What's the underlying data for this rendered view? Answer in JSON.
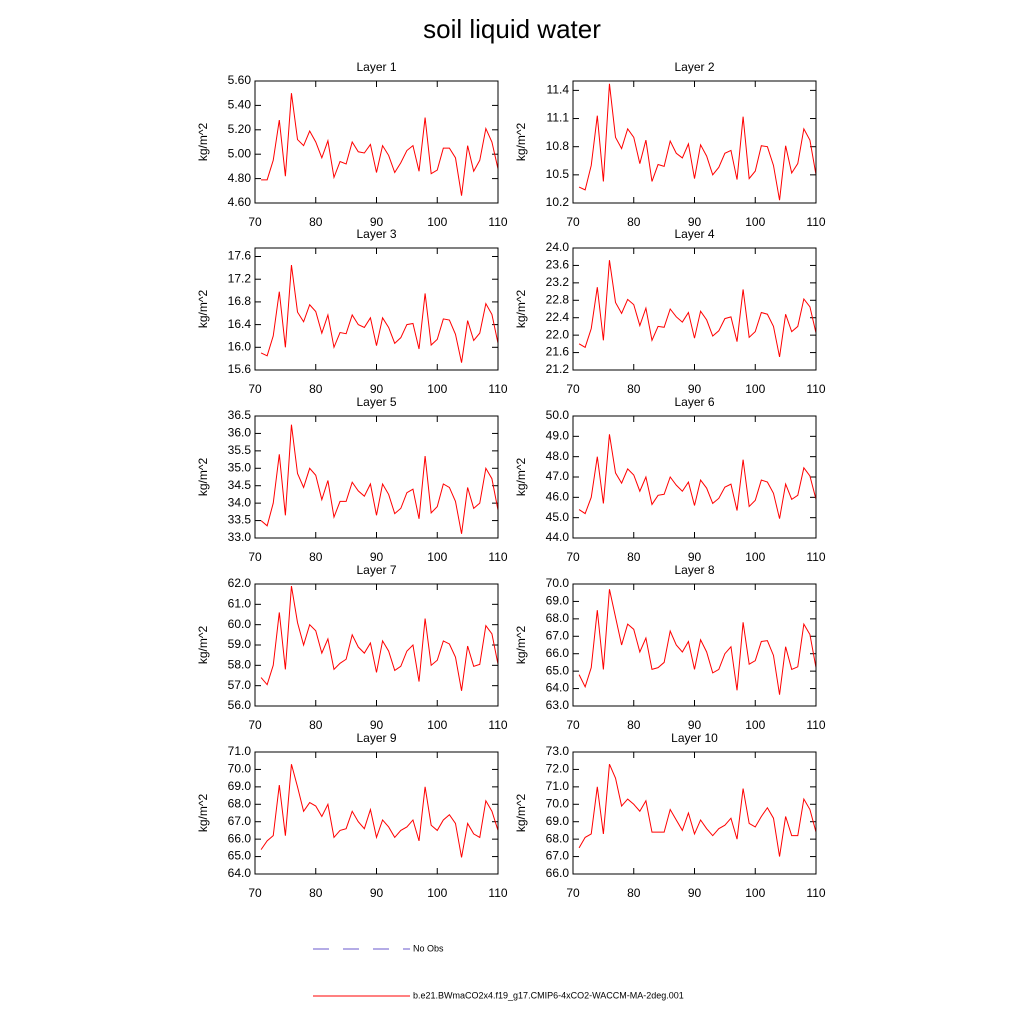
{
  "title": "soil liquid water",
  "legend": [
    {
      "name": "No Obs",
      "color": "#6a5acd",
      "dashed": true
    },
    {
      "name": "b.e21.BWmaCO2x4.f19_g17.CMIP6-4xCO2-WACCM-MA-2deg.001",
      "color": "#ff0000",
      "dashed": false
    }
  ],
  "chart_data": [
    {
      "type": "line",
      "title": "Layer 1",
      "y_label": "kg/m^2",
      "color": "#ff0000",
      "x": [
        71,
        72,
        73,
        74,
        75,
        76,
        77,
        78,
        79,
        80,
        81,
        82,
        83,
        84,
        85,
        86,
        87,
        88,
        89,
        90,
        91,
        92,
        93,
        94,
        95,
        96,
        97,
        98,
        99,
        100,
        101,
        102,
        103,
        104,
        105,
        106,
        107,
        108,
        109,
        110
      ],
      "values": [
        4.79,
        4.79,
        4.95,
        5.28,
        4.82,
        5.5,
        5.12,
        5.07,
        5.19,
        5.1,
        4.97,
        5.11,
        4.81,
        4.94,
        4.92,
        5.1,
        5.02,
        5.01,
        5.08,
        4.85,
        5.07,
        4.99,
        4.85,
        4.93,
        5.03,
        5.07,
        4.86,
        5.3,
        4.84,
        4.87,
        5.05,
        5.05,
        4.97,
        4.66,
        5.07,
        4.86,
        4.95,
        5.21,
        5.1,
        4.88
      ],
      "xlim": [
        70,
        110
      ],
      "xticks": [
        70,
        80,
        90,
        100,
        110
      ],
      "ylim": [
        4.6,
        5.6
      ],
      "yticks": [
        {
          "value": 4.6,
          "label": "4.60"
        },
        {
          "value": 4.8,
          "label": "4.80"
        },
        {
          "value": 5.0,
          "label": "5.00"
        },
        {
          "value": 5.2,
          "label": "5.20"
        },
        {
          "value": 5.4,
          "label": "5.40"
        },
        {
          "value": 5.6,
          "label": "5.60"
        }
      ]
    },
    {
      "type": "line",
      "title": "Layer 2",
      "y_label": "kg/m^2",
      "color": "#ff0000",
      "x": [
        71,
        72,
        73,
        74,
        75,
        76,
        77,
        78,
        79,
        80,
        81,
        82,
        83,
        84,
        85,
        86,
        87,
        88,
        89,
        90,
        91,
        92,
        93,
        94,
        95,
        96,
        97,
        98,
        99,
        100,
        101,
        102,
        103,
        104,
        105,
        106,
        107,
        108,
        109,
        110
      ],
      "values": [
        10.37,
        10.34,
        10.6,
        11.13,
        10.43,
        11.47,
        10.9,
        10.78,
        10.99,
        10.9,
        10.62,
        10.87,
        10.43,
        10.61,
        10.59,
        10.86,
        10.73,
        10.68,
        10.83,
        10.46,
        10.82,
        10.7,
        10.5,
        10.58,
        10.73,
        10.76,
        10.45,
        11.12,
        10.46,
        10.54,
        10.81,
        10.8,
        10.6,
        10.23,
        10.81,
        10.52,
        10.62,
        10.99,
        10.87,
        10.5
      ],
      "xlim": [
        70,
        110
      ],
      "xticks": [
        70,
        80,
        90,
        100,
        110
      ],
      "ylim": [
        10.2,
        11.5
      ],
      "yticks": [
        10.2,
        10.5,
        10.8,
        11.1,
        11.4
      ]
    },
    {
      "type": "line",
      "title": "Layer 3",
      "y_label": "kg/m^2",
      "color": "#ff0000",
      "x": [
        71,
        72,
        73,
        74,
        75,
        76,
        77,
        78,
        79,
        80,
        81,
        82,
        83,
        84,
        85,
        86,
        87,
        88,
        89,
        90,
        91,
        92,
        93,
        94,
        95,
        96,
        97,
        98,
        99,
        100,
        101,
        102,
        103,
        104,
        105,
        106,
        107,
        108,
        109,
        110
      ],
      "values": [
        15.9,
        15.85,
        16.2,
        16.98,
        16.0,
        17.45,
        16.62,
        16.45,
        16.75,
        16.63,
        16.25,
        16.57,
        16.0,
        16.26,
        16.24,
        16.57,
        16.4,
        16.35,
        16.52,
        16.03,
        16.52,
        16.35,
        16.07,
        16.17,
        16.4,
        16.42,
        15.97,
        16.95,
        16.04,
        16.14,
        16.5,
        16.48,
        16.23,
        15.73,
        16.47,
        16.12,
        16.25,
        16.77,
        16.58,
        16.07
      ],
      "xlim": [
        70,
        110
      ],
      "xticks": [
        70,
        80,
        90,
        100,
        110
      ],
      "ylim": [
        15.6,
        17.75
      ],
      "yticks": [
        15.6,
        {
          "value": 16,
          "label": "16.0"
        },
        16.4,
        16.8,
        17.2,
        17.6
      ]
    },
    {
      "type": "line",
      "title": "Layer 4",
      "y_label": "kg/m^2",
      "color": "#ff0000",
      "x": [
        71,
        72,
        73,
        74,
        75,
        76,
        77,
        78,
        79,
        80,
        81,
        82,
        83,
        84,
        85,
        86,
        87,
        88,
        89,
        90,
        91,
        92,
        93,
        94,
        95,
        96,
        97,
        98,
        99,
        100,
        101,
        102,
        103,
        104,
        105,
        106,
        107,
        108,
        109,
        110
      ],
      "values": [
        21.8,
        21.72,
        22.15,
        23.1,
        21.88,
        23.72,
        22.75,
        22.5,
        22.82,
        22.7,
        22.22,
        22.62,
        21.88,
        22.2,
        22.18,
        22.6,
        22.42,
        22.3,
        22.52,
        21.93,
        22.55,
        22.35,
        21.98,
        22.1,
        22.38,
        22.42,
        21.85,
        23.05,
        21.95,
        22.08,
        22.52,
        22.48,
        22.2,
        21.5,
        22.48,
        22.08,
        22.2,
        22.83,
        22.65,
        22.05
      ],
      "xlim": [
        70,
        110
      ],
      "xticks": [
        70,
        80,
        90,
        100,
        110
      ],
      "ylim": [
        21.2,
        24.0
      ],
      "yticks": [
        21.2,
        21.6,
        {
          "value": 22,
          "label": "22.0"
        },
        22.4,
        22.8,
        23.2,
        23.6,
        {
          "value": 24,
          "label": "24.0"
        }
      ]
    },
    {
      "type": "line",
      "title": "Layer 5",
      "y_label": "kg/m^2",
      "color": "#ff0000",
      "x": [
        71,
        72,
        73,
        74,
        75,
        76,
        77,
        78,
        79,
        80,
        81,
        82,
        83,
        84,
        85,
        86,
        87,
        88,
        89,
        90,
        91,
        92,
        93,
        94,
        95,
        96,
        97,
        98,
        99,
        100,
        101,
        102,
        103,
        104,
        105,
        106,
        107,
        108,
        109,
        110
      ],
      "values": [
        33.5,
        33.35,
        34.0,
        35.4,
        33.65,
        36.25,
        34.85,
        34.45,
        35.0,
        34.8,
        34.1,
        34.65,
        33.6,
        34.05,
        34.05,
        34.6,
        34.35,
        34.2,
        34.55,
        33.65,
        34.55,
        34.25,
        33.7,
        33.85,
        34.3,
        34.4,
        33.55,
        35.35,
        33.72,
        33.9,
        34.55,
        34.45,
        34.05,
        33.12,
        34.45,
        33.85,
        34.0,
        35.0,
        34.7,
        33.8
      ],
      "xlim": [
        70,
        110
      ],
      "xticks": [
        70,
        80,
        90,
        100,
        110
      ],
      "ylim": [
        33,
        36.5
      ],
      "yticks": [
        {
          "value": 33,
          "label": "33.0"
        },
        33.5,
        {
          "value": 34,
          "label": "34.0"
        },
        34.5,
        {
          "value": 35,
          "label": "35.0"
        },
        35.5,
        {
          "value": 36,
          "label": "36.0"
        },
        36.5
      ]
    },
    {
      "type": "line",
      "title": "Layer 6",
      "y_label": "kg/m^2",
      "color": "#ff0000",
      "x": [
        71,
        72,
        73,
        74,
        75,
        76,
        77,
        78,
        79,
        80,
        81,
        82,
        83,
        84,
        85,
        86,
        87,
        88,
        89,
        90,
        91,
        92,
        93,
        94,
        95,
        96,
        97,
        98,
        99,
        100,
        101,
        102,
        103,
        104,
        105,
        106,
        107,
        108,
        109,
        110
      ],
      "values": [
        45.4,
        45.2,
        46.0,
        48.0,
        45.7,
        49.1,
        47.2,
        46.7,
        47.4,
        47.1,
        46.3,
        47.0,
        45.65,
        46.1,
        46.15,
        47.0,
        46.6,
        46.3,
        46.75,
        45.6,
        46.85,
        46.45,
        45.7,
        45.95,
        46.5,
        46.65,
        45.35,
        47.85,
        45.55,
        45.85,
        46.85,
        46.75,
        46.2,
        44.95,
        46.65,
        45.9,
        46.1,
        47.45,
        47.05,
        45.9
      ],
      "xlim": [
        70,
        110
      ],
      "xticks": [
        70,
        80,
        90,
        100,
        110
      ],
      "ylim": [
        44,
        50
      ],
      "yticks": [
        {
          "value": 44,
          "label": "44.0"
        },
        {
          "value": 45,
          "label": "45.0"
        },
        {
          "value": 46,
          "label": "46.0"
        },
        {
          "value": 47,
          "label": "47.0"
        },
        {
          "value": 48,
          "label": "48.0"
        },
        {
          "value": 49,
          "label": "49.0"
        },
        {
          "value": 50,
          "label": "50.0"
        }
      ]
    },
    {
      "type": "line",
      "title": "Layer 7",
      "y_label": "kg/m^2",
      "color": "#ff0000",
      "x": [
        71,
        72,
        73,
        74,
        75,
        76,
        77,
        78,
        79,
        80,
        81,
        82,
        83,
        84,
        85,
        86,
        87,
        88,
        89,
        90,
        91,
        92,
        93,
        94,
        95,
        96,
        97,
        98,
        99,
        100,
        101,
        102,
        103,
        104,
        105,
        106,
        107,
        108,
        109,
        110
      ],
      "values": [
        57.4,
        57.05,
        58.0,
        60.6,
        57.8,
        61.9,
        60.1,
        59.0,
        60.0,
        59.7,
        58.6,
        59.3,
        57.8,
        58.1,
        58.3,
        59.5,
        58.9,
        58.6,
        59.1,
        57.65,
        59.2,
        58.7,
        57.75,
        57.95,
        58.7,
        59.0,
        57.2,
        60.3,
        58.0,
        58.25,
        59.2,
        59.05,
        58.4,
        56.75,
        58.95,
        57.95,
        58.05,
        59.95,
        59.55,
        58.05
      ],
      "xlim": [
        70,
        110
      ],
      "xticks": [
        70,
        80,
        90,
        100,
        110
      ],
      "ylim": [
        56,
        62
      ],
      "yticks": [
        {
          "value": 56,
          "label": "56.0"
        },
        {
          "value": 57,
          "label": "57.0"
        },
        {
          "value": 58,
          "label": "58.0"
        },
        {
          "value": 59,
          "label": "59.0"
        },
        {
          "value": 60,
          "label": "60.0"
        },
        {
          "value": 61,
          "label": "61.0"
        },
        {
          "value": 62,
          "label": "62.0"
        }
      ]
    },
    {
      "type": "line",
      "title": "Layer 8",
      "y_label": "kg/m^2",
      "color": "#ff0000",
      "x": [
        71,
        72,
        73,
        74,
        75,
        76,
        77,
        78,
        79,
        80,
        81,
        82,
        83,
        84,
        85,
        86,
        87,
        88,
        89,
        90,
        91,
        92,
        93,
        94,
        95,
        96,
        97,
        98,
        99,
        100,
        101,
        102,
        103,
        104,
        105,
        106,
        107,
        108,
        109,
        110
      ],
      "values": [
        64.8,
        64.1,
        65.2,
        68.5,
        65.1,
        69.7,
        68.1,
        66.5,
        67.7,
        67.4,
        66.1,
        66.9,
        65.1,
        65.2,
        65.5,
        67.3,
        66.5,
        66.1,
        66.7,
        65.1,
        66.8,
        66.1,
        64.9,
        65.1,
        66.0,
        66.4,
        63.9,
        67.8,
        65.4,
        65.6,
        66.7,
        66.75,
        65.9,
        63.65,
        66.4,
        65.1,
        65.25,
        67.7,
        67.1,
        65.2
      ],
      "xlim": [
        70,
        110
      ],
      "xticks": [
        70,
        80,
        90,
        100,
        110
      ],
      "ylim": [
        63,
        70
      ],
      "yticks": [
        {
          "value": 63,
          "label": "63.0"
        },
        {
          "value": 64,
          "label": "64.0"
        },
        {
          "value": 65,
          "label": "65.0"
        },
        {
          "value": 66,
          "label": "66.0"
        },
        {
          "value": 67,
          "label": "67.0"
        },
        {
          "value": 68,
          "label": "68.0"
        },
        {
          "value": 69,
          "label": "69.0"
        },
        {
          "value": 70,
          "label": "70.0"
        }
      ]
    },
    {
      "type": "line",
      "title": "Layer 9",
      "y_label": "kg/m^2",
      "color": "#ff0000",
      "x": [
        71,
        72,
        73,
        74,
        75,
        76,
        77,
        78,
        79,
        80,
        81,
        82,
        83,
        84,
        85,
        86,
        87,
        88,
        89,
        90,
        91,
        92,
        93,
        94,
        95,
        96,
        97,
        98,
        99,
        100,
        101,
        102,
        103,
        104,
        105,
        106,
        107,
        108,
        109,
        110
      ],
      "values": [
        65.4,
        65.9,
        66.2,
        69.1,
        66.2,
        70.3,
        69.0,
        67.6,
        68.1,
        67.9,
        67.3,
        68.0,
        66.1,
        66.5,
        66.6,
        67.6,
        67.0,
        66.6,
        67.7,
        66.1,
        67.1,
        66.7,
        66.1,
        66.5,
        66.7,
        67.1,
        65.9,
        69.0,
        66.8,
        66.5,
        67.1,
        67.4,
        66.9,
        64.95,
        66.9,
        66.3,
        66.1,
        68.2,
        67.6,
        66.5
      ],
      "xlim": [
        70,
        110
      ],
      "xticks": [
        70,
        80,
        90,
        100,
        110
      ],
      "ylim": [
        64,
        71
      ],
      "yticks": [
        {
          "value": 64,
          "label": "64.0"
        },
        {
          "value": 65,
          "label": "65.0"
        },
        {
          "value": 66,
          "label": "66.0"
        },
        {
          "value": 67,
          "label": "67.0"
        },
        {
          "value": 68,
          "label": "68.0"
        },
        {
          "value": 69,
          "label": "69.0"
        },
        {
          "value": 70,
          "label": "70.0"
        },
        {
          "value": 71,
          "label": "71.0"
        }
      ]
    },
    {
      "type": "line",
      "title": "Layer 10",
      "y_label": "kg/m^2",
      "color": "#ff0000",
      "x": [
        71,
        72,
        73,
        74,
        75,
        76,
        77,
        78,
        79,
        80,
        81,
        82,
        83,
        84,
        85,
        86,
        87,
        88,
        89,
        90,
        91,
        92,
        93,
        94,
        95,
        96,
        97,
        98,
        99,
        100,
        101,
        102,
        103,
        104,
        105,
        106,
        107,
        108,
        109,
        110
      ],
      "values": [
        67.5,
        68.1,
        68.3,
        71.0,
        68.3,
        72.3,
        71.5,
        69.9,
        70.3,
        70.0,
        69.6,
        70.2,
        68.4,
        68.4,
        68.4,
        69.7,
        69.1,
        68.5,
        69.5,
        68.3,
        69.1,
        68.6,
        68.2,
        68.6,
        68.8,
        69.2,
        68.0,
        70.9,
        68.9,
        68.7,
        69.3,
        69.8,
        69.2,
        67.0,
        69.3,
        68.2,
        68.2,
        70.3,
        69.7,
        68.4
      ],
      "xlim": [
        70,
        110
      ],
      "xticks": [
        70,
        80,
        90,
        100,
        110
      ],
      "ylim": [
        66,
        73
      ],
      "yticks": [
        {
          "value": 66,
          "label": "66.0"
        },
        {
          "value": 67,
          "label": "67.0"
        },
        {
          "value": 68,
          "label": "68.0"
        },
        {
          "value": 69,
          "label": "69.0"
        },
        {
          "value": 70,
          "label": "70.0"
        },
        {
          "value": 71,
          "label": "71.0"
        },
        {
          "value": 72,
          "label": "72.0"
        },
        {
          "value": 73,
          "label": "73.0"
        }
      ]
    }
  ]
}
